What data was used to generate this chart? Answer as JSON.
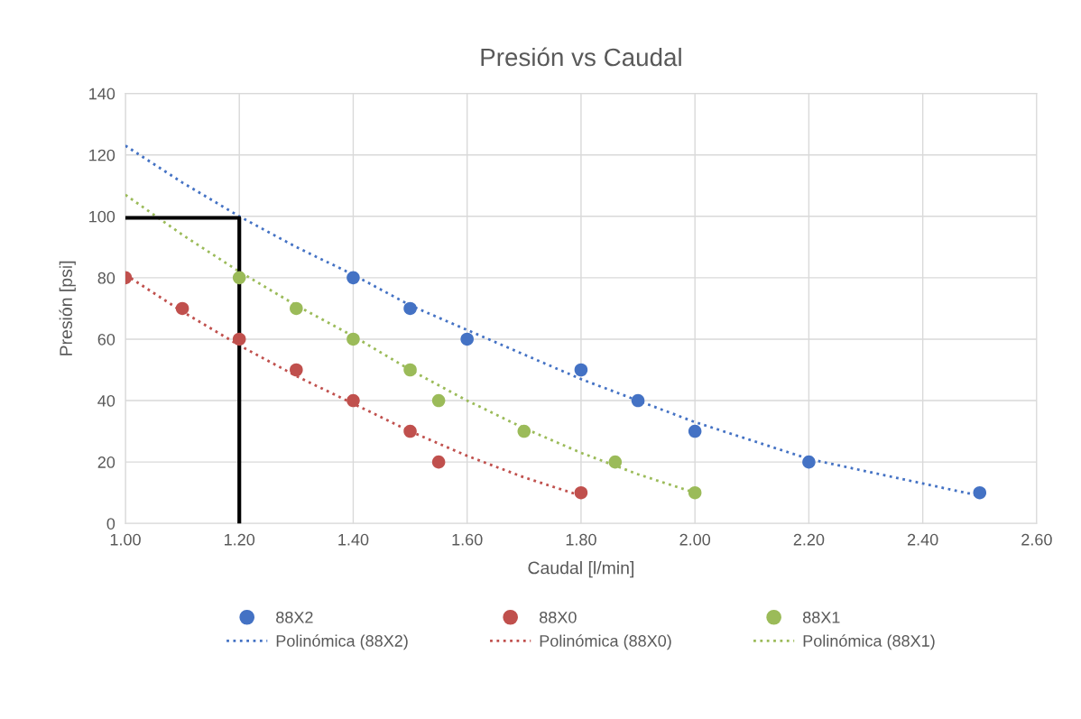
{
  "chart_data": {
    "type": "scatter",
    "title": "Presión vs Caudal",
    "xlabel": "Caudal [l/min]",
    "ylabel": "Presión [psi]",
    "xlim": [
      1.0,
      2.6
    ],
    "xticks": [
      {
        "value": 1.0,
        "label": "1.00"
      },
      {
        "value": 1.2,
        "label": "1.20"
      },
      {
        "value": 1.4,
        "label": "1.40"
      },
      {
        "value": 1.6,
        "label": "1.60"
      },
      {
        "value": 1.8,
        "label": "1.80"
      },
      {
        "value": 2.0,
        "label": "2.00"
      },
      {
        "value": 2.2,
        "label": "2.20"
      },
      {
        "value": 2.4,
        "label": "2.40"
      },
      {
        "value": 2.6,
        "label": "2.60"
      }
    ],
    "ylim": [
      0,
      140
    ],
    "yticks": [
      0,
      20,
      40,
      60,
      80,
      100,
      120,
      140
    ],
    "grid": true,
    "legend": "bottom",
    "series": [
      {
        "name": "88X2",
        "marker": "circle",
        "color": "#4472c4",
        "x": [
          1.4,
          1.5,
          1.6,
          1.8,
          1.9,
          2.0,
          2.2,
          2.5
        ],
        "values": [
          80,
          70,
          60,
          50,
          40,
          30,
          20,
          10
        ]
      },
      {
        "name": "Polinómica (88X2)",
        "type": "line",
        "line_style": "dotted",
        "color": "#4472c4",
        "x": [
          1.0,
          1.1,
          1.2,
          1.3,
          1.4,
          1.5,
          1.6,
          1.7,
          1.8,
          1.9,
          2.0,
          2.1,
          2.2,
          2.3,
          2.4,
          2.5
        ],
        "values": [
          123,
          111,
          100,
          90,
          81,
          71,
          63,
          55,
          47,
          40,
          33,
          27,
          21,
          17,
          13,
          9
        ]
      },
      {
        "name": "88X0",
        "marker": "circle",
        "color": "#c0504d",
        "x": [
          1.0,
          1.1,
          1.2,
          1.3,
          1.4,
          1.5,
          1.55,
          1.8
        ],
        "values": [
          80,
          70,
          60,
          50,
          40,
          30,
          20,
          10
        ]
      },
      {
        "name": "Polinómica (88X0)",
        "type": "line",
        "line_style": "dotted",
        "color": "#c0504d",
        "x": [
          1.0,
          1.1,
          1.2,
          1.3,
          1.4,
          1.5,
          1.6,
          1.7,
          1.8
        ],
        "values": [
          81,
          69,
          58,
          48,
          39,
          30,
          22,
          15,
          9
        ]
      },
      {
        "name": "88X1",
        "marker": "circle",
        "color": "#9bbb59",
        "x": [
          1.2,
          1.3,
          1.4,
          1.5,
          1.55,
          1.7,
          1.86,
          2.0
        ],
        "values": [
          80,
          70,
          60,
          50,
          40,
          30,
          20,
          10
        ]
      },
      {
        "name": "Polinómica (88X1)",
        "type": "line",
        "line_style": "dotted",
        "color": "#9bbb59",
        "x": [
          1.0,
          1.1,
          1.2,
          1.3,
          1.4,
          1.5,
          1.6,
          1.7,
          1.8,
          1.9,
          2.0
        ],
        "values": [
          107,
          94,
          82,
          71,
          61,
          50,
          40,
          31,
          23,
          16,
          10
        ]
      },
      {
        "type": "line",
        "line_style": "solid",
        "color": "#000000",
        "x": [
          1.0,
          1.2,
          1.2
        ],
        "values": [
          99.5,
          99.5,
          0
        ]
      }
    ]
  }
}
